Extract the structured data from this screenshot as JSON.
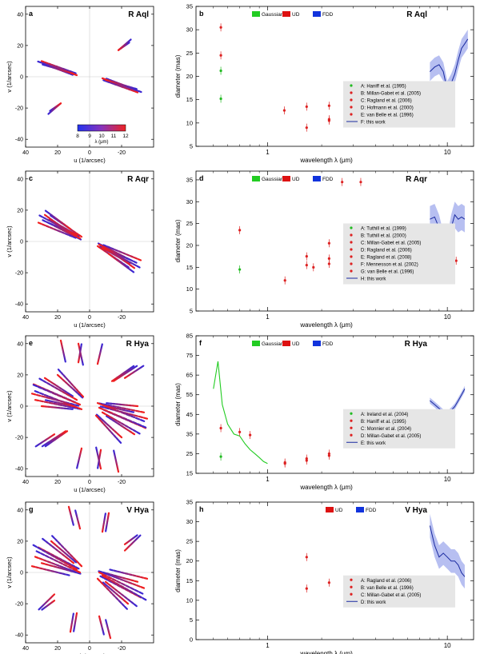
{
  "chart_data": [
    {
      "panel": "a",
      "type": "scatter",
      "title": "R Aql",
      "xlabel": "u (1/arcsec)",
      "ylabel": "v (1/arcsec)",
      "xlim": [
        40,
        -40
      ],
      "ylim": [
        -45,
        45
      ],
      "xticks": [
        40,
        20,
        0,
        -20
      ],
      "yticks": [
        40,
        20,
        0,
        -20,
        -40
      ],
      "colorbar": {
        "label": "λ (μm)",
        "ticks": [
          "8",
          "9",
          "10",
          "11",
          "12"
        ]
      },
      "tracks": [
        {
          "x1": 30,
          "y1": 10,
          "x2": 8,
          "y2": 2
        },
        {
          "x1": 28,
          "y1": 8,
          "x2": 10,
          "y2": 1
        },
        {
          "x1": -8,
          "y1": -1,
          "x2": -33,
          "y2": -10
        },
        {
          "x1": -10,
          "y1": -2,
          "x2": -30,
          "y2": -8
        },
        {
          "x1": -18,
          "y1": 17,
          "x2": -25,
          "y2": 22
        },
        {
          "x1": 18,
          "y1": -17,
          "x2": 26,
          "y2": -24
        }
      ]
    },
    {
      "panel": "b",
      "type": "scatter",
      "title": "R Aql",
      "xlabel": "wavelength λ (μm)",
      "ylabel": "diameter (mas)",
      "xscale": "log",
      "xlim": [
        0.4,
        14
      ],
      "ylim": [
        5,
        35
      ],
      "yticks": [
        5,
        10,
        15,
        20,
        25,
        30,
        35
      ],
      "xticks": [
        1,
        10
      ],
      "models": [
        "Gaussian",
        "UD",
        "FDD"
      ],
      "points": [
        {
          "x": 0.55,
          "y": 15.2,
          "c": "#22bb22"
        },
        {
          "x": 0.55,
          "y": 21.2,
          "c": "#22bb22"
        },
        {
          "x": 0.55,
          "y": 24.5,
          "c": "#dd2222"
        },
        {
          "x": 0.55,
          "y": 30.5,
          "c": "#dd2222"
        },
        {
          "x": 1.24,
          "y": 12.7,
          "c": "#dd2222"
        },
        {
          "x": 1.65,
          "y": 9.0,
          "c": "#dd2222"
        },
        {
          "x": 1.65,
          "y": 13.5,
          "c": "#dd2222"
        },
        {
          "x": 2.2,
          "y": 10.5,
          "c": "#dd2222"
        },
        {
          "x": 2.2,
          "y": 10.8,
          "c": "#dd2222"
        },
        {
          "x": 2.2,
          "y": 13.7,
          "c": "#dd2222"
        }
      ],
      "band": {
        "x": [
          8,
          8.5,
          9,
          9.5,
          10,
          10.5,
          11,
          11.5,
          12,
          12.5,
          13
        ],
        "y": [
          21,
          22,
          22.5,
          21,
          17,
          18.5,
          20.5,
          23.5,
          26,
          27,
          28
        ],
        "w": 2
      },
      "legend": [
        "A: Haniff et al. (1995)",
        "B: Millan-Gabet et al. (2005)",
        "C: Ragland et al. (2006)",
        "D: Hofmann et al. (2000)",
        "E: van Belle et al. (1996)",
        "F: this work"
      ]
    },
    {
      "panel": "c",
      "type": "scatter",
      "title": "R Aqr",
      "xlabel": "u (1/arcsec)",
      "ylabel": "v (1/arcsec)",
      "xlim": [
        40,
        -40
      ],
      "ylim": [
        -45,
        45
      ],
      "xticks": [
        40,
        20,
        0,
        -20
      ],
      "yticks": [
        40,
        20,
        0,
        -20,
        -40
      ],
      "tracks": [
        {
          "x1": 32,
          "y1": 12,
          "x2": 8,
          "y2": 2
        },
        {
          "x1": 28,
          "y1": 17,
          "x2": 10,
          "y2": 4
        },
        {
          "x1": 25,
          "y1": 14,
          "x2": 6,
          "y2": 3
        },
        {
          "x1": 22,
          "y1": 10,
          "x2": 5,
          "y2": 1
        },
        {
          "x1": -6,
          "y1": -2,
          "x2": -30,
          "y2": -14
        },
        {
          "x1": -8,
          "y1": -4,
          "x2": -32,
          "y2": -17
        },
        {
          "x1": -10,
          "y1": -5,
          "x2": -26,
          "y2": -12
        },
        {
          "x1": -5,
          "y1": -3,
          "x2": -25,
          "y2": -17
        },
        {
          "x1": -12,
          "y1": -8,
          "x2": -28,
          "y2": -20
        }
      ]
    },
    {
      "panel": "d",
      "type": "scatter",
      "title": "R Aqr",
      "xlabel": "wavelength λ (μm)",
      "ylabel": "diameter (mas)",
      "xscale": "log",
      "xlim": [
        0.4,
        14
      ],
      "ylim": [
        5,
        37
      ],
      "yticks": [
        5,
        10,
        15,
        20,
        25,
        30,
        35
      ],
      "xticks": [
        1,
        10
      ],
      "models": [
        "Gaussian",
        "UD",
        "FDD"
      ],
      "points": [
        {
          "x": 0.7,
          "y": 14.5,
          "c": "#22bb22"
        },
        {
          "x": 0.7,
          "y": 23.5,
          "c": "#dd2222"
        },
        {
          "x": 1.25,
          "y": 12.0,
          "c": "#dd2222"
        },
        {
          "x": 1.65,
          "y": 15.5,
          "c": "#dd2222"
        },
        {
          "x": 1.65,
          "y": 17.5,
          "c": "#dd2222"
        },
        {
          "x": 1.8,
          "y": 15.0,
          "c": "#dd2222"
        },
        {
          "x": 2.2,
          "y": 15.8,
          "c": "#dd2222"
        },
        {
          "x": 2.2,
          "y": 17.0,
          "c": "#dd2222"
        },
        {
          "x": 2.2,
          "y": 20.5,
          "c": "#dd2222"
        },
        {
          "x": 2.6,
          "y": 34.5,
          "c": "#dd2222"
        },
        {
          "x": 3.3,
          "y": 34.5,
          "c": "#dd2222"
        },
        {
          "x": 11.2,
          "y": 16.5,
          "c": "#dd2222"
        }
      ],
      "band": {
        "x": [
          8,
          8.5,
          9,
          9.5,
          10,
          10.5,
          11,
          11.5,
          12,
          12.5
        ],
        "y": [
          26,
          26.5,
          24,
          20,
          19,
          24,
          27,
          26,
          26.5,
          26
        ],
        "w": 3
      },
      "legend": [
        "A: Tuthill et al. (1999)",
        "B: Tuthill et al. (2000)",
        "C: Millan-Gabet et al. (2005)",
        "D: Ragland et al. (2006)",
        "E: Ragland et al. (2008)",
        "F: Mennesson et al. (2002)",
        "G: van Belle et al. (1996)",
        "H: this work"
      ]
    },
    {
      "panel": "e",
      "type": "scatter",
      "title": "R Hya",
      "xlabel": "u (1/arcsec)",
      "ylabel": "v (1/arcsec)",
      "xlim": [
        40,
        -40
      ],
      "ylim": [
        -45,
        45
      ],
      "xticks": [
        40,
        20,
        0,
        -20
      ],
      "yticks": [
        40,
        20,
        0,
        -20,
        -40
      ],
      "tracks": [
        {
          "x1": 18,
          "y1": 42,
          "x2": 15,
          "y2": 28
        },
        {
          "x1": 7,
          "y1": 40,
          "x2": 4,
          "y2": 26
        },
        {
          "x1": -14,
          "y1": 16,
          "x2": -28,
          "y2": 26
        },
        {
          "x1": 35,
          "y1": 14,
          "x2": 8,
          "y2": 2
        },
        {
          "x1": 36,
          "y1": 8,
          "x2": 6,
          "y2": 0
        },
        {
          "x1": 34,
          "y1": 4,
          "x2": 5,
          "y2": -2
        },
        {
          "x1": 28,
          "y1": 18,
          "x2": 10,
          "y2": 6
        },
        {
          "x1": 20,
          "y1": 20,
          "x2": 4,
          "y2": 5
        },
        {
          "x1": 30,
          "y1": 0,
          "x2": 10,
          "y2": -2
        },
        {
          "x1": -5,
          "y1": 2,
          "x2": -35,
          "y2": -10
        },
        {
          "x1": -6,
          "y1": -1,
          "x2": -36,
          "y2": -14
        },
        {
          "x1": -8,
          "y1": -4,
          "x2": -32,
          "y2": -18
        },
        {
          "x1": -4,
          "y1": -6,
          "x2": -20,
          "y2": -24
        },
        {
          "x1": -10,
          "y1": 0,
          "x2": -28,
          "y2": -4
        },
        {
          "x1": 15,
          "y1": -16,
          "x2": 30,
          "y2": -26
        },
        {
          "x1": -7,
          "y1": -28,
          "x2": -5,
          "y2": -40
        },
        {
          "x1": 5,
          "y1": -27,
          "x2": 8,
          "y2": -40
        },
        {
          "x1": 22,
          "y1": -18,
          "x2": 34,
          "y2": -26
        }
      ]
    },
    {
      "panel": "f",
      "type": "scatter",
      "title": "R Hya",
      "xlabel": "wavelength λ (μm)",
      "ylabel": "diameter (mas)",
      "xscale": "log",
      "xlim": [
        0.4,
        14
      ],
      "ylim": [
        15,
        85
      ],
      "yticks": [
        15,
        25,
        35,
        45,
        55,
        65,
        75,
        85
      ],
      "xticks": [
        1,
        10
      ],
      "models": [
        "Gaussian",
        "UD",
        "FDD"
      ],
      "points": [
        {
          "x": 0.55,
          "y": 23.5,
          "c": "#22bb22"
        },
        {
          "x": 0.55,
          "y": 38.0,
          "c": "#dd2222"
        },
        {
          "x": 0.7,
          "y": 36.0,
          "c": "#dd2222"
        },
        {
          "x": 0.8,
          "y": 34.5,
          "c": "#dd2222"
        },
        {
          "x": 1.25,
          "y": 20.0,
          "c": "#dd2222"
        },
        {
          "x": 1.25,
          "y": 20.5,
          "c": "#dd2222"
        },
        {
          "x": 1.65,
          "y": 21.5,
          "c": "#dd2222"
        },
        {
          "x": 1.65,
          "y": 22.5,
          "c": "#dd2222"
        },
        {
          "x": 2.2,
          "y": 24.0,
          "c": "#dd2222"
        },
        {
          "x": 2.2,
          "y": 25.0,
          "c": "#dd2222"
        }
      ],
      "green_curve": {
        "x": [
          0.5,
          0.53,
          0.56,
          0.6,
          0.65,
          0.7,
          0.75,
          0.8,
          0.85,
          0.9,
          0.95,
          1.0
        ],
        "y": [
          58,
          72,
          50,
          40,
          35,
          34,
          30,
          27,
          25,
          23,
          21,
          20
        ]
      },
      "band": {
        "x": [
          8,
          8.5,
          9,
          9.5,
          10,
          10.5,
          11,
          11.5,
          12,
          12.5
        ],
        "y": [
          52,
          50,
          48,
          46,
          45,
          47,
          49,
          52,
          55,
          58
        ],
        "w": 1.5
      },
      "legend": [
        "A: Ireland et al. (2004)",
        "B: Haniff et al. (1995)",
        "C: Monnier et al. (2004)",
        "D: Millan-Gabet et al. (2005)",
        "E: this work"
      ]
    },
    {
      "panel": "g",
      "type": "scatter",
      "title": "V Hya",
      "xlabel": "u (1/arcsec)",
      "ylabel": "v (1/arcsec)",
      "xlim": [
        40,
        -40
      ],
      "ylim": [
        -45,
        45
      ],
      "xticks": [
        40,
        20,
        0,
        -20
      ],
      "yticks": [
        40,
        20,
        0,
        -20,
        -40
      ],
      "tracks": [
        {
          "x1": 13,
          "y1": 42,
          "x2": 10,
          "y2": 30
        },
        {
          "x1": -12,
          "y1": 38,
          "x2": -10,
          "y2": 26
        },
        {
          "x1": -22,
          "y1": 18,
          "x2": -30,
          "y2": 24
        },
        {
          "x1": 32,
          "y1": 16,
          "x2": 6,
          "y2": 2
        },
        {
          "x1": 34,
          "y1": 10,
          "x2": 8,
          "y2": 0
        },
        {
          "x1": 30,
          "y1": 6,
          "x2": 5,
          "y2": -1
        },
        {
          "x1": 24,
          "y1": 20,
          "x2": 8,
          "y2": 6
        },
        {
          "x1": 36,
          "y1": 4,
          "x2": 12,
          "y2": -2
        },
        {
          "x1": -6,
          "y1": 0,
          "x2": -34,
          "y2": -14
        },
        {
          "x1": -8,
          "y1": -2,
          "x2": -36,
          "y2": -18
        },
        {
          "x1": -5,
          "y1": -4,
          "x2": -24,
          "y2": -24
        },
        {
          "x1": -10,
          "y1": -6,
          "x2": -30,
          "y2": -22
        },
        {
          "x1": 22,
          "y1": -14,
          "x2": 32,
          "y2": -24
        },
        {
          "x1": 8,
          "y1": -26,
          "x2": 10,
          "y2": -38
        },
        {
          "x1": -6,
          "y1": -28,
          "x2": -9,
          "y2": -40
        }
      ]
    },
    {
      "panel": "h",
      "type": "scatter",
      "title": "V Hya",
      "xlabel": "wavelength λ (μm)",
      "ylabel": "diameter (mas)",
      "xscale": "log",
      "xlim": [
        0.4,
        14
      ],
      "ylim": [
        0,
        35
      ],
      "yticks": [
        0,
        5,
        10,
        15,
        20,
        25,
        30,
        35
      ],
      "xticks": [
        1,
        10
      ],
      "models": [
        "UD",
        "FDD"
      ],
      "points": [
        {
          "x": 1.65,
          "y": 21.0,
          "c": "#dd2222"
        },
        {
          "x": 1.65,
          "y": 13.0,
          "c": "#dd2222"
        },
        {
          "x": 2.2,
          "y": 14.5,
          "c": "#dd2222"
        }
      ],
      "band": {
        "x": [
          8,
          8.5,
          9,
          9.5,
          10,
          10.5,
          11,
          11.5,
          12,
          12.5
        ],
        "y": [
          29,
          24,
          21,
          22,
          21,
          20,
          20,
          19,
          17,
          16
        ],
        "w": 3
      },
      "legend": [
        "A: Ragland et al. (2006)",
        "B: van Belle et al. (1996)",
        "C: Millan-Gabet et al. (2005)",
        "D: this work"
      ]
    }
  ],
  "colors": {
    "gaussian": "#22cc22",
    "ud": "#dd1111",
    "fdd": "#1133dd",
    "band": "#aab4ee",
    "line": "#1a2aa0"
  }
}
